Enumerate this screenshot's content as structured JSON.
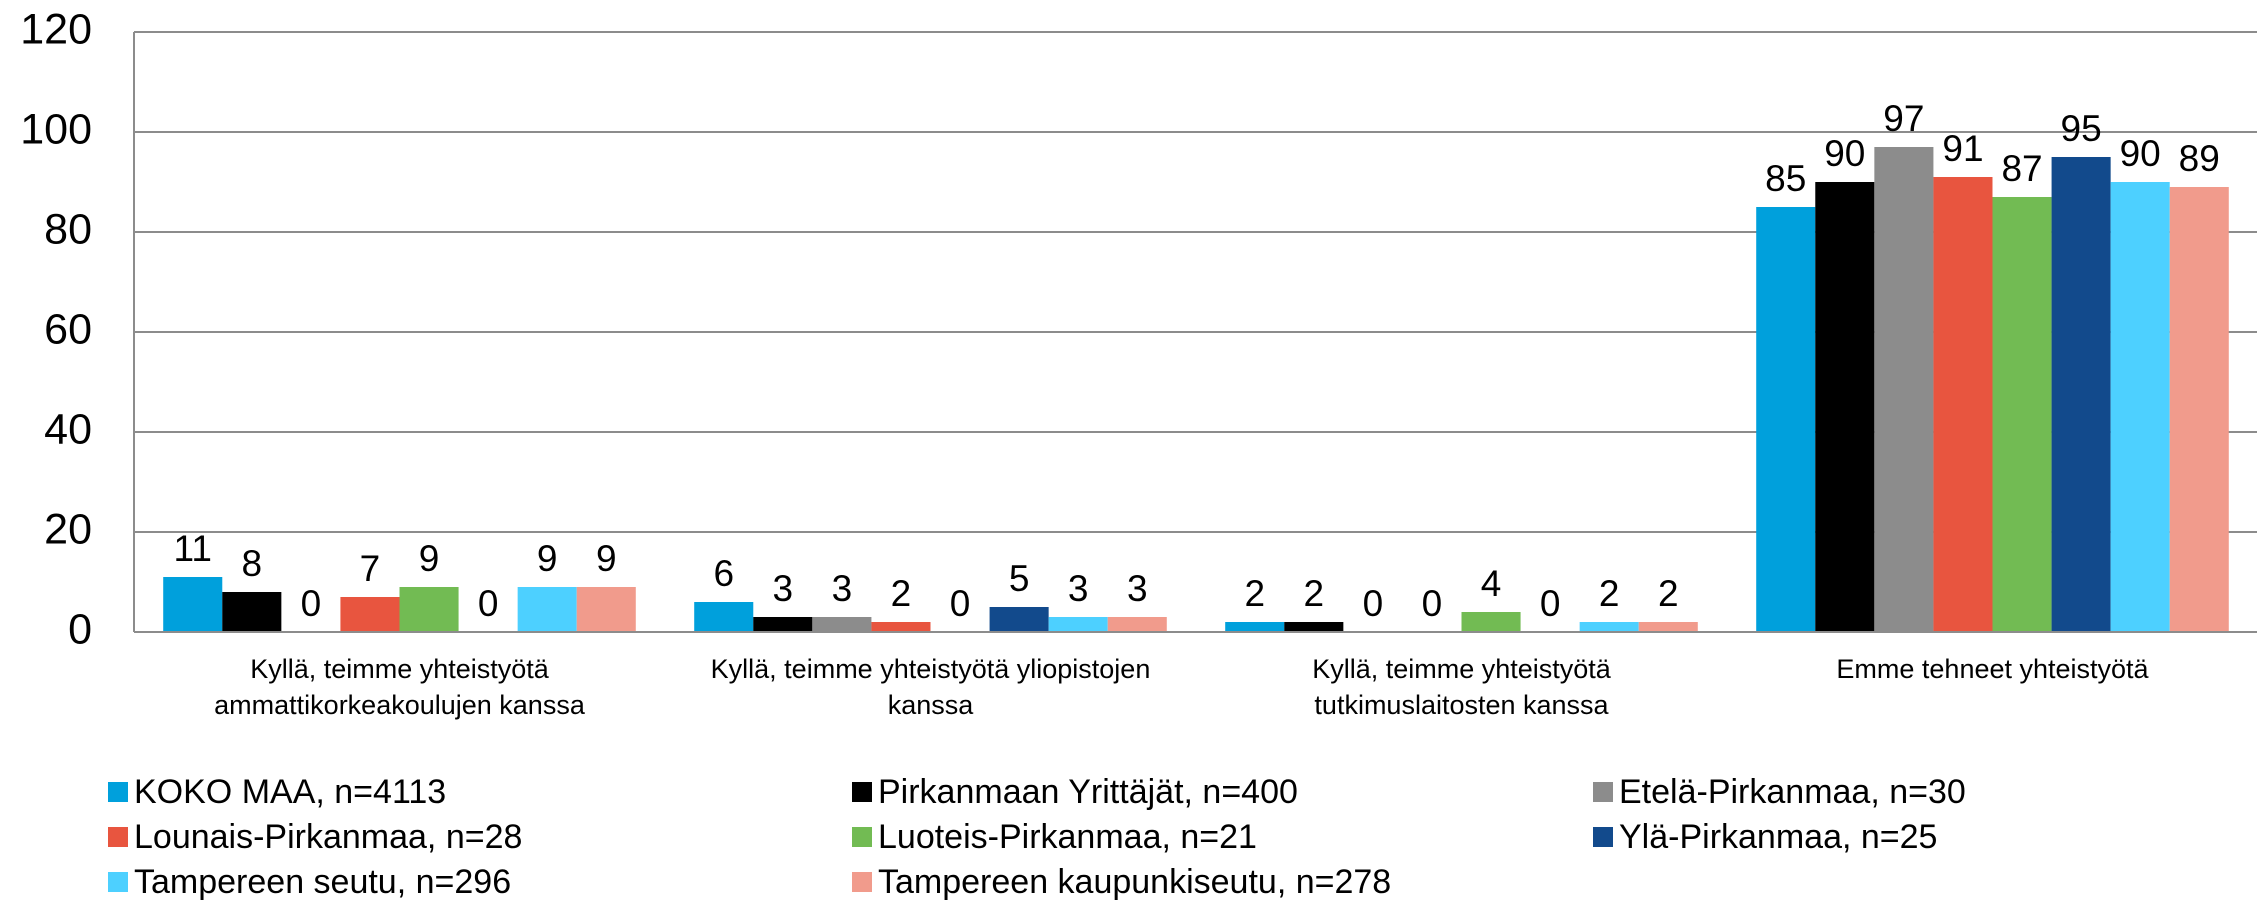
{
  "chart_data": {
    "type": "bar",
    "categories": [
      [
        "Kyllä, teimme yhteistyötä",
        "ammattikorkeakoulujen kanssa"
      ],
      [
        "Kyllä, teimme yhteistyötä yliopistojen",
        "kanssa"
      ],
      [
        "Kyllä, teimme yhteistyötä",
        "tutkimuslaitosten kanssa"
      ],
      [
        "Emme tehneet yhteistyötä"
      ]
    ],
    "series": [
      {
        "name": "KOKO MAA, n=4113",
        "color": "#00a0dc",
        "values": [
          11,
          6,
          2,
          85
        ]
      },
      {
        "name": "Pirkanmaan Yrittäjät, n=400",
        "color": "#000000",
        "values": [
          8,
          3,
          2,
          90
        ]
      },
      {
        "name": "Etelä-Pirkanmaa, n=30",
        "color": "#8c8c8c",
        "values": [
          0,
          3,
          0,
          97
        ]
      },
      {
        "name": "Lounais-Pirkanmaa, n=28",
        "color": "#e8553f",
        "values": [
          7,
          2,
          0,
          91
        ]
      },
      {
        "name": "Luoteis-Pirkanmaa, n=21",
        "color": "#72bb53",
        "values": [
          9,
          0,
          4,
          87
        ]
      },
      {
        "name": "Ylä-Pirkanmaa, n=25",
        "color": "#124a8c",
        "values": [
          0,
          5,
          0,
          95
        ]
      },
      {
        "name": "Tampereen seutu, n=296",
        "color": "#4dd0ff",
        "values": [
          9,
          3,
          2,
          90
        ]
      },
      {
        "name": "Tampereen kaupunkiseutu, n=278",
        "color": "#f19b8c",
        "values": [
          9,
          3,
          2,
          89
        ]
      }
    ],
    "ylim": [
      0,
      120
    ],
    "yticks": [
      0,
      20,
      40,
      60,
      80,
      100,
      120
    ],
    "grid": true,
    "legend": "bottom"
  }
}
